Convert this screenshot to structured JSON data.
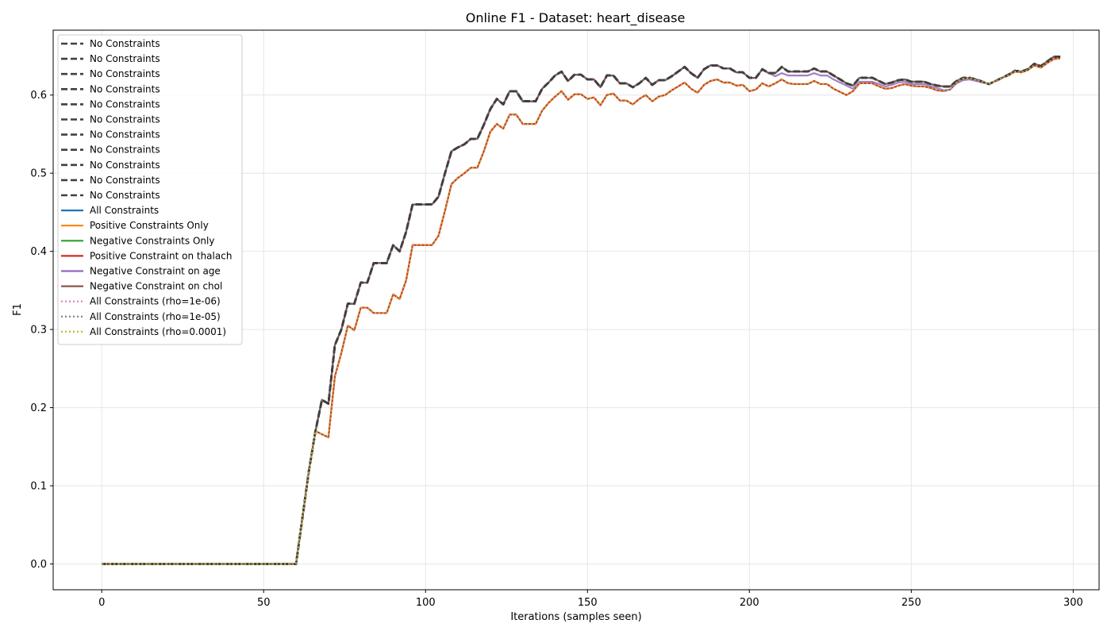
{
  "chart_data": {
    "type": "line",
    "title": "Online F1 - Dataset: heart_disease",
    "xlabel": "Iterations (samples seen)",
    "ylabel": "F1",
    "xlim": [
      -15,
      308
    ],
    "ylim": [
      -0.033,
      0.683
    ],
    "xticks": [
      0,
      50,
      100,
      150,
      200,
      250,
      300
    ],
    "yticks": [
      0.0,
      0.1,
      0.2,
      0.3,
      0.4,
      0.5,
      0.6
    ],
    "xtick_labels": [
      "0",
      "50",
      "100",
      "150",
      "200",
      "250",
      "300"
    ],
    "ytick_labels": [
      "0.0",
      "0.1",
      "0.2",
      "0.3",
      "0.4",
      "0.5",
      "0.6"
    ],
    "grid": true,
    "legend_position": "upper-left",
    "curves": {
      "upper": [
        [
          0,
          0
        ],
        [
          60,
          0
        ],
        [
          62,
          0.06
        ],
        [
          64,
          0.12
        ],
        [
          66,
          0.17
        ],
        [
          68,
          0.21
        ],
        [
          70,
          0.205
        ],
        [
          72,
          0.28
        ],
        [
          74,
          0.3
        ],
        [
          76,
          0.333
        ],
        [
          78,
          0.333
        ],
        [
          80,
          0.36
        ],
        [
          82,
          0.36
        ],
        [
          84,
          0.385
        ],
        [
          86,
          0.385
        ],
        [
          88,
          0.385
        ],
        [
          90,
          0.408
        ],
        [
          92,
          0.4
        ],
        [
          94,
          0.425
        ],
        [
          96,
          0.46
        ],
        [
          98,
          0.46
        ],
        [
          100,
          0.46
        ],
        [
          102,
          0.46
        ],
        [
          104,
          0.47
        ],
        [
          106,
          0.5
        ],
        [
          108,
          0.528
        ],
        [
          110,
          0.533
        ],
        [
          112,
          0.537
        ],
        [
          114,
          0.544
        ],
        [
          116,
          0.544
        ],
        [
          118,
          0.562
        ],
        [
          120,
          0.582
        ],
        [
          122,
          0.595
        ],
        [
          124,
          0.588
        ],
        [
          126,
          0.605
        ],
        [
          128,
          0.605
        ],
        [
          130,
          0.592
        ],
        [
          132,
          0.592
        ],
        [
          134,
          0.592
        ],
        [
          136,
          0.608
        ],
        [
          138,
          0.616
        ],
        [
          140,
          0.625
        ],
        [
          142,
          0.63
        ],
        [
          144,
          0.618
        ],
        [
          146,
          0.626
        ],
        [
          148,
          0.626
        ],
        [
          150,
          0.62
        ],
        [
          152,
          0.62
        ],
        [
          154,
          0.61
        ],
        [
          156,
          0.625
        ],
        [
          158,
          0.625
        ],
        [
          160,
          0.615
        ],
        [
          162,
          0.615
        ],
        [
          164,
          0.61
        ],
        [
          166,
          0.615
        ],
        [
          168,
          0.622
        ],
        [
          170,
          0.613
        ],
        [
          172,
          0.619
        ],
        [
          174,
          0.619
        ],
        [
          176,
          0.624
        ],
        [
          178,
          0.63
        ],
        [
          180,
          0.636
        ],
        [
          182,
          0.628
        ],
        [
          184,
          0.622
        ],
        [
          186,
          0.633
        ],
        [
          188,
          0.638
        ],
        [
          190,
          0.638
        ],
        [
          192,
          0.634
        ],
        [
          194,
          0.634
        ],
        [
          196,
          0.629
        ],
        [
          198,
          0.629
        ],
        [
          200,
          0.622
        ],
        [
          202,
          0.622
        ],
        [
          204,
          0.633
        ],
        [
          206,
          0.628
        ],
        [
          208,
          0.628
        ],
        [
          210,
          0.636
        ],
        [
          212,
          0.63
        ],
        [
          214,
          0.63
        ],
        [
          216,
          0.63
        ],
        [
          218,
          0.63
        ],
        [
          220,
          0.634
        ],
        [
          222,
          0.63
        ],
        [
          224,
          0.63
        ],
        [
          226,
          0.625
        ],
        [
          228,
          0.62
        ],
        [
          230,
          0.615
        ],
        [
          232,
          0.612
        ],
        [
          234,
          0.622
        ],
        [
          236,
          0.622
        ],
        [
          238,
          0.622
        ],
        [
          240,
          0.618
        ],
        [
          242,
          0.614
        ],
        [
          244,
          0.616
        ],
        [
          246,
          0.619
        ],
        [
          248,
          0.62
        ],
        [
          250,
          0.617
        ],
        [
          252,
          0.617
        ],
        [
          254,
          0.617
        ],
        [
          256,
          0.614
        ],
        [
          258,
          0.612
        ],
        [
          260,
          0.611
        ],
        [
          262,
          0.611
        ],
        [
          264,
          0.618
        ],
        [
          266,
          0.622
        ],
        [
          268,
          0.622
        ],
        [
          270,
          0.62
        ],
        [
          272,
          0.617
        ],
        [
          274,
          0.614
        ],
        [
          276,
          0.618
        ],
        [
          278,
          0.622
        ],
        [
          280,
          0.626
        ],
        [
          282,
          0.631
        ],
        [
          284,
          0.63
        ],
        [
          286,
          0.633
        ],
        [
          288,
          0.64
        ],
        [
          290,
          0.637
        ],
        [
          292,
          0.643
        ],
        [
          294,
          0.649
        ],
        [
          296,
          0.649
        ]
      ],
      "lower": [
        [
          0,
          0
        ],
        [
          60,
          0
        ],
        [
          62,
          0.06
        ],
        [
          64,
          0.12
        ],
        [
          66,
          0.17
        ],
        [
          68,
          0.166
        ],
        [
          70,
          0.162
        ],
        [
          72,
          0.24
        ],
        [
          74,
          0.27
        ],
        [
          76,
          0.305
        ],
        [
          78,
          0.299
        ],
        [
          80,
          0.328
        ],
        [
          82,
          0.328
        ],
        [
          84,
          0.321
        ],
        [
          86,
          0.321
        ],
        [
          88,
          0.321
        ],
        [
          90,
          0.345
        ],
        [
          92,
          0.339
        ],
        [
          94,
          0.363
        ],
        [
          96,
          0.408
        ],
        [
          98,
          0.408
        ],
        [
          100,
          0.408
        ],
        [
          102,
          0.408
        ],
        [
          104,
          0.42
        ],
        [
          106,
          0.452
        ],
        [
          108,
          0.486
        ],
        [
          110,
          0.494
        ],
        [
          112,
          0.5
        ],
        [
          114,
          0.507
        ],
        [
          116,
          0.507
        ],
        [
          118,
          0.528
        ],
        [
          120,
          0.553
        ],
        [
          122,
          0.563
        ],
        [
          124,
          0.557
        ],
        [
          126,
          0.575
        ],
        [
          128,
          0.575
        ],
        [
          130,
          0.563
        ],
        [
          132,
          0.563
        ],
        [
          134,
          0.563
        ],
        [
          136,
          0.58
        ],
        [
          138,
          0.59
        ],
        [
          140,
          0.598
        ],
        [
          142,
          0.605
        ],
        [
          144,
          0.594
        ],
        [
          146,
          0.601
        ],
        [
          148,
          0.601
        ],
        [
          150,
          0.595
        ],
        [
          152,
          0.597
        ],
        [
          154,
          0.587
        ],
        [
          156,
          0.6
        ],
        [
          158,
          0.602
        ],
        [
          160,
          0.593
        ],
        [
          162,
          0.593
        ],
        [
          164,
          0.588
        ],
        [
          166,
          0.595
        ],
        [
          168,
          0.6
        ],
        [
          170,
          0.592
        ],
        [
          172,
          0.598
        ],
        [
          174,
          0.6
        ],
        [
          176,
          0.606
        ],
        [
          178,
          0.611
        ],
        [
          180,
          0.616
        ],
        [
          182,
          0.608
        ],
        [
          184,
          0.603
        ],
        [
          186,
          0.613
        ],
        [
          188,
          0.618
        ],
        [
          190,
          0.62
        ],
        [
          192,
          0.616
        ],
        [
          194,
          0.616
        ],
        [
          196,
          0.612
        ],
        [
          198,
          0.613
        ],
        [
          200,
          0.605
        ],
        [
          202,
          0.607
        ],
        [
          204,
          0.615
        ],
        [
          206,
          0.611
        ],
        [
          208,
          0.615
        ],
        [
          210,
          0.62
        ],
        [
          212,
          0.615
        ],
        [
          214,
          0.614
        ],
        [
          216,
          0.614
        ],
        [
          218,
          0.614
        ],
        [
          220,
          0.618
        ],
        [
          222,
          0.614
        ],
        [
          224,
          0.614
        ],
        [
          226,
          0.608
        ],
        [
          228,
          0.604
        ],
        [
          230,
          0.6
        ],
        [
          232,
          0.605
        ],
        [
          234,
          0.615
        ],
        [
          236,
          0.615
        ],
        [
          238,
          0.615
        ],
        [
          240,
          0.611
        ],
        [
          242,
          0.608
        ],
        [
          244,
          0.609
        ],
        [
          246,
          0.612
        ],
        [
          248,
          0.614
        ],
        [
          250,
          0.612
        ],
        [
          252,
          0.611
        ],
        [
          254,
          0.611
        ],
        [
          256,
          0.609
        ],
        [
          258,
          0.606
        ],
        [
          260,
          0.605
        ],
        [
          262,
          0.607
        ],
        [
          264,
          0.616
        ],
        [
          266,
          0.621
        ],
        [
          268,
          0.622
        ],
        [
          270,
          0.619
        ],
        [
          272,
          0.617
        ],
        [
          274,
          0.614
        ],
        [
          276,
          0.618
        ],
        [
          278,
          0.622
        ],
        [
          280,
          0.625
        ],
        [
          282,
          0.63
        ],
        [
          284,
          0.629
        ],
        [
          286,
          0.632
        ],
        [
          288,
          0.638
        ],
        [
          290,
          0.635
        ],
        [
          292,
          0.641
        ],
        [
          294,
          0.646
        ],
        [
          296,
          0.647
        ]
      ],
      "neg_age_tail": [
        [
          206,
          0.628
        ],
        [
          208,
          0.624
        ],
        [
          210,
          0.628
        ],
        [
          212,
          0.625
        ],
        [
          214,
          0.625
        ],
        [
          216,
          0.625
        ],
        [
          218,
          0.625
        ],
        [
          220,
          0.628
        ],
        [
          222,
          0.625
        ],
        [
          224,
          0.625
        ],
        [
          226,
          0.62
        ],
        [
          228,
          0.616
        ],
        [
          230,
          0.612
        ],
        [
          232,
          0.608
        ],
        [
          234,
          0.617
        ],
        [
          236,
          0.617
        ],
        [
          238,
          0.617
        ],
        [
          240,
          0.614
        ],
        [
          242,
          0.611
        ],
        [
          244,
          0.613
        ],
        [
          246,
          0.616
        ],
        [
          248,
          0.617
        ],
        [
          250,
          0.614
        ],
        [
          252,
          0.614
        ],
        [
          254,
          0.614
        ],
        [
          256,
          0.611
        ],
        [
          258,
          0.609
        ],
        [
          260,
          0.606
        ],
        [
          262,
          0.607
        ],
        [
          264,
          0.615
        ],
        [
          266,
          0.619
        ],
        [
          268,
          0.62
        ],
        [
          270,
          0.618
        ],
        [
          272,
          0.616
        ],
        [
          274,
          0.614
        ],
        [
          276,
          0.618
        ],
        [
          278,
          0.622
        ],
        [
          280,
          0.626
        ],
        [
          282,
          0.631
        ],
        [
          284,
          0.63
        ],
        [
          286,
          0.633
        ],
        [
          288,
          0.64
        ],
        [
          290,
          0.637
        ],
        [
          292,
          0.643
        ],
        [
          294,
          0.649
        ],
        [
          296,
          0.649
        ]
      ]
    },
    "series": [
      {
        "name": "No Constraints",
        "curve": "upper",
        "color": "#404040",
        "style": "dashed"
      },
      {
        "name": "No Constraints",
        "curve": "upper",
        "color": "#404040",
        "style": "dashed"
      },
      {
        "name": "No Constraints",
        "curve": "upper",
        "color": "#404040",
        "style": "dashed"
      },
      {
        "name": "No Constraints",
        "curve": "upper",
        "color": "#404040",
        "style": "dashed"
      },
      {
        "name": "No Constraints",
        "curve": "upper",
        "color": "#404040",
        "style": "dashed"
      },
      {
        "name": "No Constraints",
        "curve": "upper",
        "color": "#404040",
        "style": "dashed"
      },
      {
        "name": "No Constraints",
        "curve": "upper",
        "color": "#404040",
        "style": "dashed"
      },
      {
        "name": "No Constraints",
        "curve": "upper",
        "color": "#404040",
        "style": "dashed"
      },
      {
        "name": "No Constraints",
        "curve": "upper",
        "color": "#404040",
        "style": "dashed"
      },
      {
        "name": "No Constraints",
        "curve": "upper",
        "color": "#404040",
        "style": "dashed"
      },
      {
        "name": "No Constraints",
        "curve": "upper",
        "color": "#404040",
        "style": "dashed"
      },
      {
        "name": "All Constraints",
        "curve": "upper",
        "color": "#1f77b4",
        "style": "solid"
      },
      {
        "name": "Positive Constraints Only",
        "curve": "lower",
        "color": "#ff7f0e",
        "style": "solid"
      },
      {
        "name": "Negative Constraints Only",
        "curve": "upper",
        "color": "#2ca02c",
        "style": "solid"
      },
      {
        "name": "Positive Constraint on thalach",
        "curve": "lower",
        "color": "#d62728",
        "style": "solid"
      },
      {
        "name": "Negative Constraint on age",
        "curve": "upper",
        "color": "#9467bd",
        "style": "solid"
      },
      {
        "name": "Negative Constraint on chol",
        "curve": "upper",
        "color": "#8c564b",
        "style": "solid"
      },
      {
        "name": "All Constraints (rho=1e-06)",
        "curve": "lower",
        "color": "#e377c2",
        "style": "dotted"
      },
      {
        "name": "All Constraints (rho=1e-05)",
        "curve": "lower",
        "color": "#7f7f7f",
        "style": "dotted"
      },
      {
        "name": "All Constraints (rho=0.0001)",
        "curve": "lower",
        "color": "#bcbd22",
        "style": "dotted"
      }
    ]
  }
}
